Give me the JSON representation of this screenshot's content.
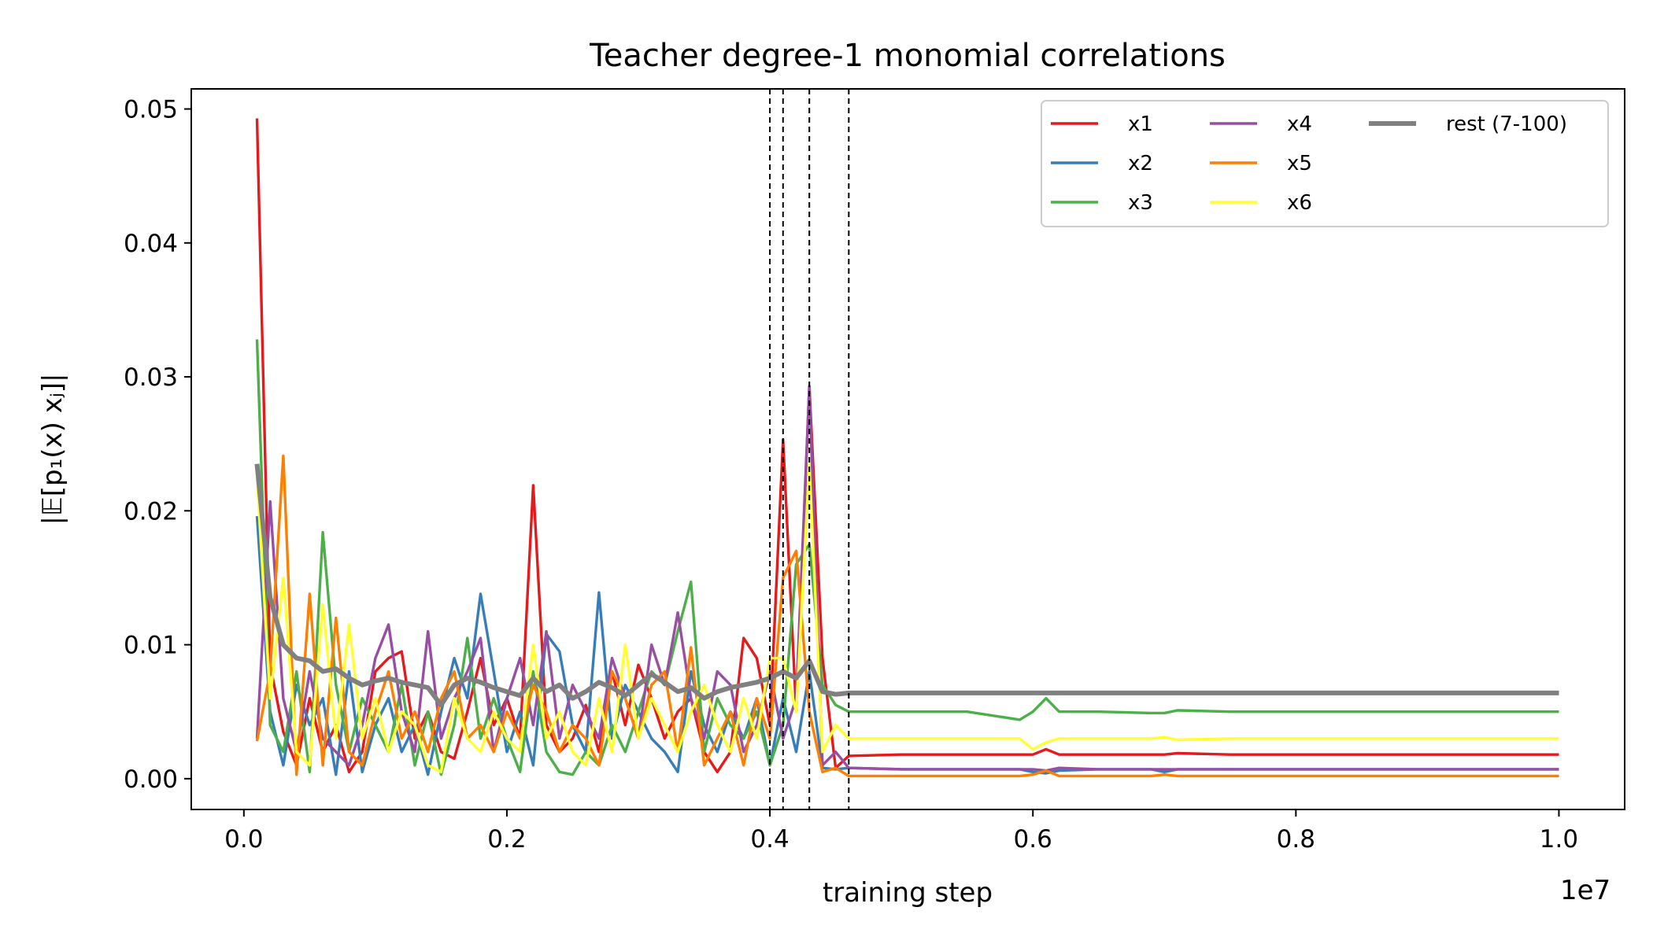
{
  "chart_data": {
    "type": "line",
    "title": "Teacher   degree-1 monomial correlations",
    "xlabel": "training step",
    "ylabel": "|𝔼[p₁(x) xⱼ]|",
    "x_offset_label": "1e7",
    "xlim": [
      -0.04,
      1.05
    ],
    "ylim": [
      -0.0023,
      0.0515
    ],
    "x_ticks": [
      0.0,
      0.2,
      0.4,
      0.6,
      0.8,
      1.0
    ],
    "x_tick_labels": [
      "0.0",
      "0.2",
      "0.4",
      "0.6",
      "0.8",
      "1.0"
    ],
    "y_ticks": [
      0.0,
      0.01,
      0.02,
      0.03,
      0.04,
      0.05
    ],
    "y_tick_labels": [
      "0.00",
      "0.01",
      "0.02",
      "0.03",
      "0.04",
      "0.05"
    ],
    "vlines": [
      0.4,
      0.41,
      0.43,
      0.46
    ],
    "grid": false,
    "legend_position": "top-right",
    "legend_columns": 3,
    "series": [
      {
        "name": "x1",
        "color": "#e41a1c",
        "x": [
          0.01,
          0.02,
          0.03,
          0.04,
          0.05,
          0.06,
          0.07,
          0.08,
          0.09,
          0.1,
          0.11,
          0.12,
          0.13,
          0.14,
          0.15,
          0.16,
          0.17,
          0.18,
          0.19,
          0.2,
          0.21,
          0.22,
          0.23,
          0.24,
          0.25,
          0.26,
          0.27,
          0.28,
          0.29,
          0.3,
          0.31,
          0.32,
          0.33,
          0.34,
          0.35,
          0.36,
          0.37,
          0.38,
          0.39,
          0.4,
          0.41,
          0.42,
          0.43,
          0.44,
          0.45,
          0.46,
          0.5,
          0.55,
          0.59,
          0.6,
          0.61,
          0.62,
          0.65,
          0.69,
          0.7,
          0.71,
          0.75,
          0.8,
          0.85,
          0.9,
          0.95,
          1.0
        ],
        "y": [
          0.0493,
          0.0085,
          0.0035,
          0.001,
          0.006,
          0.002,
          0.004,
          0.0005,
          0.002,
          0.008,
          0.009,
          0.0095,
          0.003,
          0.005,
          0.002,
          0.0015,
          0.005,
          0.009,
          0.004,
          0.006,
          0.003,
          0.0219,
          0.004,
          0.002,
          0.003,
          0.0055,
          0.002,
          0.008,
          0.004,
          0.0085,
          0.006,
          0.003,
          0.005,
          0.006,
          0.002,
          0.0005,
          0.002,
          0.0105,
          0.009,
          0.004,
          0.0253,
          0.005,
          0.0293,
          0.009,
          0.0008,
          0.0017,
          0.0018,
          0.0018,
          0.0018,
          0.0018,
          0.0022,
          0.0018,
          0.0018,
          0.0018,
          0.0018,
          0.0019,
          0.0018,
          0.0018,
          0.0018,
          0.0018,
          0.0018,
          0.0018
        ]
      },
      {
        "name": "x2",
        "color": "#377eb8",
        "x": [
          0.01,
          0.02,
          0.03,
          0.04,
          0.05,
          0.06,
          0.07,
          0.08,
          0.09,
          0.1,
          0.11,
          0.12,
          0.13,
          0.14,
          0.15,
          0.16,
          0.17,
          0.18,
          0.19,
          0.2,
          0.21,
          0.22,
          0.23,
          0.24,
          0.25,
          0.26,
          0.27,
          0.28,
          0.29,
          0.3,
          0.31,
          0.32,
          0.33,
          0.34,
          0.35,
          0.36,
          0.37,
          0.38,
          0.39,
          0.4,
          0.41,
          0.42,
          0.43,
          0.44,
          0.45,
          0.46,
          0.5,
          0.55,
          0.59,
          0.6,
          0.61,
          0.62,
          0.65,
          0.69,
          0.7,
          0.71,
          0.75,
          0.8,
          0.85,
          0.9,
          0.95,
          1.0
        ],
        "y": [
          0.0196,
          0.005,
          0.001,
          0.007,
          0.004,
          0.006,
          0.0003,
          0.008,
          0.0005,
          0.004,
          0.006,
          0.002,
          0.004,
          0.0003,
          0.005,
          0.009,
          0.006,
          0.0138,
          0.008,
          0.002,
          0.005,
          0.001,
          0.0108,
          0.0095,
          0.004,
          0.002,
          0.0139,
          0.003,
          0.007,
          0.005,
          0.003,
          0.002,
          0.0005,
          0.008,
          0.004,
          0.002,
          0.005,
          0.003,
          0.006,
          0.001,
          0.006,
          0.002,
          0.008,
          0.0008,
          0.0007,
          0.0008,
          0.0007,
          0.0007,
          0.0007,
          0.0005,
          0.0004,
          0.0006,
          0.0007,
          0.0007,
          0.0005,
          0.0007,
          0.0007,
          0.0007,
          0.0007,
          0.0007,
          0.0007,
          0.0007
        ]
      },
      {
        "name": "x3",
        "color": "#4daf4a",
        "x": [
          0.01,
          0.02,
          0.03,
          0.04,
          0.05,
          0.06,
          0.07,
          0.08,
          0.09,
          0.1,
          0.11,
          0.12,
          0.13,
          0.14,
          0.15,
          0.16,
          0.17,
          0.18,
          0.19,
          0.2,
          0.21,
          0.22,
          0.23,
          0.24,
          0.25,
          0.26,
          0.27,
          0.28,
          0.29,
          0.3,
          0.31,
          0.32,
          0.33,
          0.34,
          0.35,
          0.36,
          0.37,
          0.38,
          0.39,
          0.4,
          0.41,
          0.42,
          0.43,
          0.44,
          0.45,
          0.46,
          0.5,
          0.55,
          0.59,
          0.6,
          0.61,
          0.62,
          0.65,
          0.69,
          0.7,
          0.71,
          0.75,
          0.8,
          0.85,
          0.9,
          0.95,
          1.0
        ],
        "y": [
          0.0328,
          0.004,
          0.002,
          0.008,
          0.0005,
          0.0184,
          0.007,
          0.002,
          0.006,
          0.004,
          0.002,
          0.007,
          0.001,
          0.005,
          0.0003,
          0.004,
          0.0105,
          0.003,
          0.006,
          0.003,
          0.0005,
          0.008,
          0.002,
          0.0005,
          0.0003,
          0.002,
          0.001,
          0.004,
          0.002,
          0.005,
          0.008,
          0.007,
          0.011,
          0.0147,
          0.002,
          0.006,
          0.004,
          0.003,
          0.005,
          0.001,
          0.004,
          0.016,
          0.0175,
          0.007,
          0.0055,
          0.005,
          0.005,
          0.005,
          0.0044,
          0.005,
          0.006,
          0.005,
          0.005,
          0.0049,
          0.0049,
          0.0051,
          0.005,
          0.005,
          0.005,
          0.005,
          0.005,
          0.005
        ]
      },
      {
        "name": "x4",
        "color": "#984ea3",
        "x": [
          0.01,
          0.02,
          0.03,
          0.04,
          0.05,
          0.06,
          0.07,
          0.08,
          0.09,
          0.1,
          0.11,
          0.12,
          0.13,
          0.14,
          0.15,
          0.16,
          0.17,
          0.18,
          0.19,
          0.2,
          0.21,
          0.22,
          0.23,
          0.24,
          0.25,
          0.26,
          0.27,
          0.28,
          0.29,
          0.3,
          0.31,
          0.32,
          0.33,
          0.34,
          0.35,
          0.36,
          0.37,
          0.38,
          0.39,
          0.4,
          0.41,
          0.42,
          0.43,
          0.44,
          0.45,
          0.46,
          0.5,
          0.55,
          0.59,
          0.6,
          0.61,
          0.62,
          0.65,
          0.69,
          0.7,
          0.71,
          0.75,
          0.8,
          0.85,
          0.9,
          0.95,
          1.0
        ],
        "y": [
          0.003,
          0.0207,
          0.006,
          0.002,
          0.008,
          0.003,
          0.002,
          0.001,
          0.004,
          0.009,
          0.0115,
          0.005,
          0.002,
          0.011,
          0.003,
          0.006,
          0.008,
          0.0105,
          0.002,
          0.006,
          0.009,
          0.004,
          0.011,
          0.003,
          0.007,
          0.005,
          0.003,
          0.009,
          0.006,
          0.003,
          0.01,
          0.007,
          0.0124,
          0.006,
          0.003,
          0.008,
          0.007,
          0.002,
          0.004,
          0.008,
          0.003,
          0.006,
          0.0293,
          0.001,
          0.002,
          0.0008,
          0.0007,
          0.0007,
          0.0007,
          0.0007,
          0.0006,
          0.0008,
          0.0007,
          0.0007,
          0.0007,
          0.0007,
          0.0007,
          0.0007,
          0.0007,
          0.0007,
          0.0007,
          0.0007
        ]
      },
      {
        "name": "x5",
        "color": "#ff7f00",
        "x": [
          0.01,
          0.02,
          0.03,
          0.04,
          0.05,
          0.06,
          0.07,
          0.08,
          0.09,
          0.1,
          0.11,
          0.12,
          0.13,
          0.14,
          0.15,
          0.16,
          0.17,
          0.18,
          0.19,
          0.2,
          0.21,
          0.22,
          0.23,
          0.24,
          0.25,
          0.26,
          0.27,
          0.28,
          0.29,
          0.3,
          0.31,
          0.32,
          0.33,
          0.34,
          0.35,
          0.36,
          0.37,
          0.38,
          0.39,
          0.4,
          0.41,
          0.42,
          0.43,
          0.44,
          0.45,
          0.46,
          0.5,
          0.55,
          0.59,
          0.6,
          0.61,
          0.62,
          0.65,
          0.69,
          0.7,
          0.71,
          0.75,
          0.8,
          0.85,
          0.9,
          0.95,
          1.0
        ],
        "y": [
          0.0028,
          0.008,
          0.0241,
          0.0003,
          0.0138,
          0.001,
          0.012,
          0.002,
          0.001,
          0.005,
          0.008,
          0.003,
          0.005,
          0.002,
          0.006,
          0.008,
          0.003,
          0.004,
          0.002,
          0.005,
          0.003,
          0.007,
          0.005,
          0.002,
          0.004,
          0.003,
          0.001,
          0.008,
          0.006,
          0.003,
          0.007,
          0.008,
          0.002,
          0.0098,
          0.001,
          0.003,
          0.005,
          0.001,
          0.006,
          0.003,
          0.015,
          0.017,
          0.005,
          0.0005,
          0.0008,
          0.0002,
          0.0002,
          0.0002,
          0.0002,
          0.0003,
          0.0006,
          0.0002,
          0.0002,
          0.0002,
          0.0003,
          0.0002,
          0.0002,
          0.0002,
          0.0002,
          0.0002,
          0.0002,
          0.0002
        ]
      },
      {
        "name": "x6",
        "color": "#ffff33",
        "x": [
          0.01,
          0.02,
          0.03,
          0.04,
          0.05,
          0.06,
          0.07,
          0.08,
          0.09,
          0.1,
          0.11,
          0.12,
          0.13,
          0.14,
          0.15,
          0.16,
          0.17,
          0.18,
          0.19,
          0.2,
          0.21,
          0.22,
          0.23,
          0.24,
          0.25,
          0.26,
          0.27,
          0.28,
          0.29,
          0.3,
          0.31,
          0.32,
          0.33,
          0.34,
          0.35,
          0.36,
          0.37,
          0.38,
          0.39,
          0.4,
          0.41,
          0.42,
          0.43,
          0.44,
          0.45,
          0.46,
          0.5,
          0.55,
          0.59,
          0.6,
          0.61,
          0.62,
          0.65,
          0.69,
          0.7,
          0.71,
          0.75,
          0.8,
          0.85,
          0.9,
          0.95,
          1.0
        ],
        "y": [
          0.0225,
          0.006,
          0.015,
          0.002,
          0.001,
          0.013,
          0.003,
          0.0115,
          0.003,
          0.006,
          0.002,
          0.005,
          0.004,
          0.001,
          0.0005,
          0.006,
          0.003,
          0.002,
          0.005,
          0.003,
          0.002,
          0.01,
          0.003,
          0.005,
          0.002,
          0.001,
          0.006,
          0.002,
          0.01,
          0.003,
          0.006,
          0.004,
          0.002,
          0.005,
          0.007,
          0.004,
          0.002,
          0.006,
          0.003,
          0.009,
          0.009,
          0.005,
          0.0235,
          0.002,
          0.004,
          0.003,
          0.003,
          0.003,
          0.003,
          0.0022,
          0.0027,
          0.003,
          0.003,
          0.003,
          0.0031,
          0.0029,
          0.003,
          0.003,
          0.003,
          0.003,
          0.003,
          0.003
        ]
      },
      {
        "name": "rest (7-100)",
        "color": "#808080",
        "thick": true,
        "x": [
          0.01,
          0.02,
          0.03,
          0.04,
          0.05,
          0.06,
          0.07,
          0.08,
          0.09,
          0.1,
          0.11,
          0.12,
          0.13,
          0.14,
          0.15,
          0.16,
          0.17,
          0.18,
          0.19,
          0.2,
          0.21,
          0.22,
          0.23,
          0.24,
          0.25,
          0.26,
          0.27,
          0.28,
          0.29,
          0.3,
          0.31,
          0.32,
          0.33,
          0.34,
          0.35,
          0.36,
          0.37,
          0.38,
          0.39,
          0.4,
          0.41,
          0.42,
          0.43,
          0.44,
          0.45,
          0.46,
          0.5,
          0.55,
          0.6,
          0.65,
          0.7,
          0.75,
          0.8,
          0.85,
          0.9,
          0.95,
          1.0
        ],
        "y": [
          0.0235,
          0.0135,
          0.01,
          0.009,
          0.0088,
          0.008,
          0.0082,
          0.0075,
          0.007,
          0.0073,
          0.0075,
          0.0072,
          0.007,
          0.0068,
          0.0055,
          0.007,
          0.0075,
          0.0072,
          0.0068,
          0.0065,
          0.0062,
          0.0075,
          0.0065,
          0.007,
          0.006,
          0.0065,
          0.0072,
          0.0068,
          0.0062,
          0.007,
          0.0078,
          0.0072,
          0.0065,
          0.0068,
          0.006,
          0.0065,
          0.0068,
          0.007,
          0.0072,
          0.0075,
          0.008,
          0.0075,
          0.0088,
          0.0065,
          0.0063,
          0.0064,
          0.0064,
          0.0064,
          0.0064,
          0.0064,
          0.0064,
          0.0064,
          0.0064,
          0.0064,
          0.0064,
          0.0064,
          0.0064
        ]
      }
    ]
  }
}
